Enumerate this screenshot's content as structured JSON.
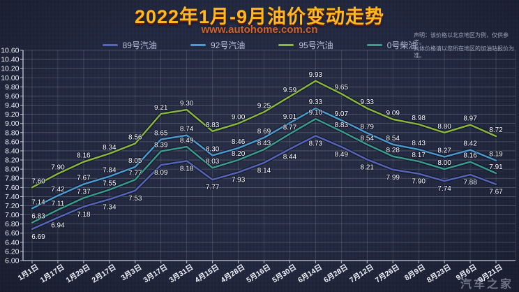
{
  "header": {
    "title": "2022年1月-9月油价变动走势",
    "subtitle": "www.autohome.com.cn",
    "disclaimer_line1": "声明：该价格以北京地区为例，仅供参考。",
    "disclaimer_line2": "具体价格请以您所在地区的加油站报价为准。"
  },
  "watermark": "汽车之家",
  "colors": {
    "background": "#222840",
    "title": "#ffb91e",
    "subtitle": "#d3612a",
    "axis_text": "#eef1f8",
    "grid": "#d8deeb",
    "data_label": "#ffffff",
    "watermark": "#c6ccda"
  },
  "chart_data": {
    "type": "line",
    "title": "2022年1月-9月油价变动走势",
    "xlabel": "",
    "ylabel": "",
    "ylim": [
      6.0,
      10.6
    ],
    "ytick_step": 0.2,
    "grid": true,
    "legend_position": "top",
    "categories": [
      "1月1日",
      "1月17日",
      "1月29日",
      "2月17日",
      "3月3日",
      "3月17日",
      "3月31日",
      "4月15日",
      "4月28日",
      "5月16日",
      "5月30日",
      "6月14日",
      "6月28日",
      "7月12日",
      "7月26日",
      "8月9日",
      "8月23日",
      "9月6日",
      "9月21日"
    ],
    "series": [
      {
        "name": "89号汽油",
        "color": "#5565b8",
        "label_position": "below",
        "values": [
          6.69,
          6.94,
          7.18,
          7.34,
          7.53,
          8.09,
          8.18,
          7.77,
          7.93,
          8.14,
          8.44,
          8.73,
          8.49,
          8.21,
          7.99,
          7.9,
          7.74,
          7.88,
          7.67
        ]
      },
      {
        "name": "92号汽油",
        "color": "#4a9bd0",
        "label_position": "above",
        "values": [
          7.14,
          7.42,
          7.67,
          7.84,
          8.05,
          8.65,
          8.74,
          8.3,
          8.46,
          8.69,
          9.01,
          9.33,
          9.07,
          8.79,
          8.54,
          8.43,
          8.27,
          8.42,
          8.19
        ]
      },
      {
        "name": "95号汽油",
        "color": "#8ab83f",
        "label_position": "above",
        "values": [
          7.6,
          7.9,
          8.16,
          8.34,
          8.56,
          9.21,
          9.3,
          8.83,
          9.0,
          9.25,
          9.59,
          9.93,
          9.65,
          9.33,
          9.09,
          8.98,
          8.8,
          8.97,
          8.72
        ]
      },
      {
        "name": "0号柴油",
        "color": "#3a9c8c",
        "label_position": "above",
        "values": [
          6.83,
          7.11,
          7.37,
          7.55,
          7.77,
          8.39,
          8.49,
          8.03,
          8.2,
          8.43,
          8.77,
          9.1,
          8.83,
          8.54,
          8.28,
          8.17,
          8.0,
          8.16,
          7.91
        ]
      }
    ]
  }
}
